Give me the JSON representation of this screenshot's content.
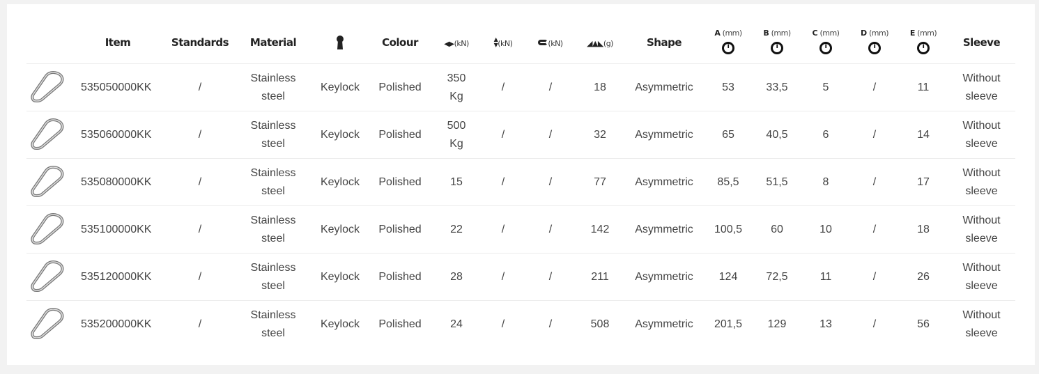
{
  "columns": {
    "item": "Item",
    "standards": "Standards",
    "material": "Material",
    "keylock_icon": "keyhole-icon",
    "colour": "Colour",
    "major_axis_unit": "(kN)",
    "minor_axis_unit": "(kN)",
    "gate_open_unit": "(kN)",
    "weight_unit": "(g)",
    "shape": "Shape",
    "a": "A",
    "b": "B",
    "c": "C",
    "d": "D",
    "e": "E",
    "mm": "(mm)",
    "sleeve": "Sleeve"
  },
  "rows": [
    {
      "item": "535050000KK",
      "standards": "/",
      "material": "Stainless steel",
      "lock": "Keylock",
      "colour": "Polished",
      "major": "350 Kg",
      "minor": "/",
      "gate": "/",
      "weight": "18",
      "shape": "Asymmetric",
      "a": "53",
      "b": "33,5",
      "c": "5",
      "d": "/",
      "e": "11",
      "sleeve": "Without sleeve"
    },
    {
      "item": "535060000KK",
      "standards": "/",
      "material": "Stainless steel",
      "lock": "Keylock",
      "colour": "Polished",
      "major": "500 Kg",
      "minor": "/",
      "gate": "/",
      "weight": "32",
      "shape": "Asymmetric",
      "a": "65",
      "b": "40,5",
      "c": "6",
      "d": "/",
      "e": "14",
      "sleeve": "Without sleeve"
    },
    {
      "item": "535080000KK",
      "standards": "/",
      "material": "Stainless steel",
      "lock": "Keylock",
      "colour": "Polished",
      "major": "15",
      "minor": "/",
      "gate": "/",
      "weight": "77",
      "shape": "Asymmetric",
      "a": "85,5",
      "b": "51,5",
      "c": "8",
      "d": "/",
      "e": "17",
      "sleeve": "Without sleeve"
    },
    {
      "item": "535100000KK",
      "standards": "/",
      "material": "Stainless steel",
      "lock": "Keylock",
      "colour": "Polished",
      "major": "22",
      "minor": "/",
      "gate": "/",
      "weight": "142",
      "shape": "Asymmetric",
      "a": "100,5",
      "b": "60",
      "c": "10",
      "d": "/",
      "e": "18",
      "sleeve": "Without sleeve"
    },
    {
      "item": "535120000KK",
      "standards": "/",
      "material": "Stainless steel",
      "lock": "Keylock",
      "colour": "Polished",
      "major": "28",
      "minor": "/",
      "gate": "/",
      "weight": "211",
      "shape": "Asymmetric",
      "a": "124",
      "b": "72,5",
      "c": "11",
      "d": "/",
      "e": "26",
      "sleeve": "Without sleeve"
    },
    {
      "item": "535200000KK",
      "standards": "/",
      "material": "Stainless steel",
      "lock": "Keylock",
      "colour": "Polished",
      "major": "24",
      "minor": "/",
      "gate": "/",
      "weight": "508",
      "shape": "Asymmetric",
      "a": "201,5",
      "b": "129",
      "c": "13",
      "d": "/",
      "e": "56",
      "sleeve": "Without sleeve"
    }
  ]
}
